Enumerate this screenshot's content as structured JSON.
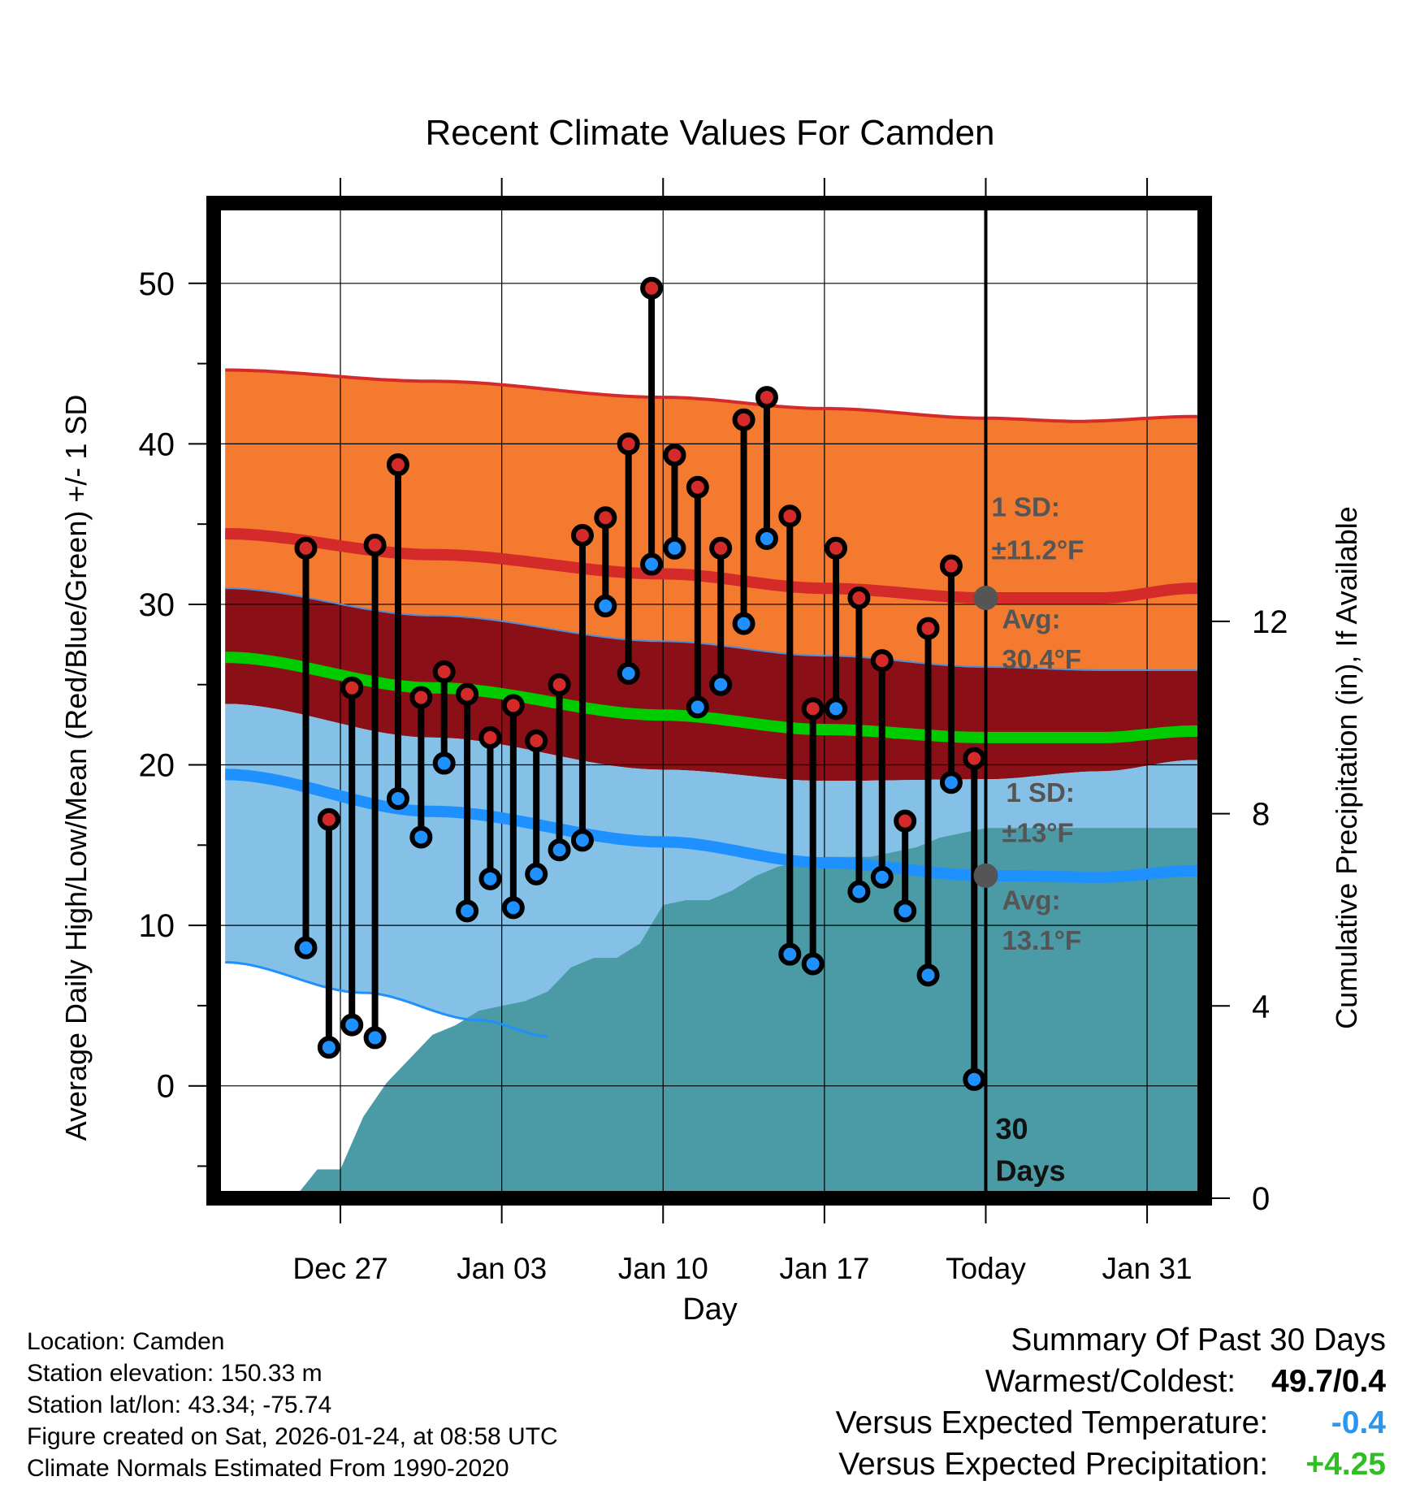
{
  "chart_data": {
    "type": "line",
    "title": "Recent Climate Values For Camden",
    "xlabel": "Day",
    "ylabel_left": "Average Daily High/Low/Mean (Red/Blue/Green) +/- 1 SD",
    "ylabel_right": "Cumulative Precipitation (in), If Available",
    "ylim_left": [
      -7,
      55
    ],
    "ylim_right": [
      0,
      20.7
    ],
    "xlim_days": [
      -33.5,
      9.5
    ],
    "x_ticks": [
      {
        "day": -28,
        "label": "Dec 27"
      },
      {
        "day": -21,
        "label": "Jan 03"
      },
      {
        "day": -14,
        "label": "Jan 10"
      },
      {
        "day": -7,
        "label": "Jan 17"
      },
      {
        "day": 0,
        "label": "Today"
      },
      {
        "day": 7,
        "label": "Jan 31"
      }
    ],
    "y_ticks_left": [
      0,
      10,
      20,
      30,
      40,
      50
    ],
    "y_minor_ticks_left": [
      -5,
      5,
      15,
      25,
      35,
      45
    ],
    "y_ticks_right": [
      0,
      4,
      8,
      12
    ],
    "grid": true,
    "series": [
      {
        "name": "Daily High",
        "color": "#d42a2a",
        "values": [
          33.5,
          16.6,
          24.8,
          33.7,
          38.7,
          24.2,
          25.8,
          24.4,
          21.7,
          23.7,
          21.5,
          25.0,
          34.3,
          35.4,
          40.0,
          49.7,
          39.3,
          37.3,
          33.5,
          41.5,
          42.9,
          35.5,
          23.5,
          33.5,
          30.4,
          26.5,
          16.5,
          28.5,
          32.4,
          20.4
        ]
      },
      {
        "name": "Daily Low",
        "color": "#1e90ff",
        "values": [
          8.6,
          2.4,
          3.8,
          3.0,
          17.9,
          15.5,
          20.1,
          10.9,
          12.9,
          11.1,
          13.2,
          14.7,
          15.3,
          29.9,
          25.7,
          32.5,
          33.5,
          23.6,
          25.0,
          28.8,
          34.1,
          8.2,
          7.6,
          23.5,
          12.1,
          13.0,
          10.9,
          6.9,
          18.9,
          0.4
        ]
      },
      {
        "name": "Normal High",
        "color": "#d42a2a",
        "values": [
          [
            -33,
            34.4
          ],
          [
            -24,
            33.1
          ],
          [
            -14,
            31.9
          ],
          [
            -7,
            31.0
          ],
          [
            0,
            30.4
          ],
          [
            5,
            30.4
          ],
          [
            9,
            31.0
          ]
        ]
      },
      {
        "name": "Normal Mean",
        "color": "#00cc00",
        "values": [
          [
            -33,
            26.7
          ],
          [
            -24,
            24.8
          ],
          [
            -14,
            23.1
          ],
          [
            -7,
            22.2
          ],
          [
            0,
            21.7
          ],
          [
            5,
            21.7
          ],
          [
            9,
            22.1
          ]
        ]
      },
      {
        "name": "Normal Low",
        "color": "#1e90ff",
        "values": [
          [
            -33,
            19.4
          ],
          [
            -24,
            17.1
          ],
          [
            -14,
            15.2
          ],
          [
            -7,
            13.9
          ],
          [
            0,
            13.1
          ],
          [
            5,
            13.0
          ],
          [
            9,
            13.4
          ]
        ]
      },
      {
        "name": "High +1 SD",
        "color": "#d42a2a",
        "values": [
          [
            -33,
            44.6
          ],
          [
            -24,
            43.9
          ],
          [
            -14,
            42.9
          ],
          [
            -7,
            42.2
          ],
          [
            0,
            41.6
          ],
          [
            4,
            41.4
          ],
          [
            9,
            41.7
          ]
        ]
      },
      {
        "name": "Low -1 SD",
        "color": "#1e90ff",
        "values": [
          [
            -33,
            7.7
          ],
          [
            -27,
            5.8
          ],
          [
            -22,
            4.1
          ],
          [
            -19,
            3.1
          ]
        ]
      },
      {
        "name": "High -1 SD / Low +1 SD boundary",
        "color": "#4c8fd6",
        "values": [
          [
            -33,
            31.0
          ],
          [
            -24,
            29.3
          ],
          [
            -14,
            27.7
          ],
          [
            -7,
            26.8
          ],
          [
            0,
            26.1
          ],
          [
            5,
            25.9
          ],
          [
            9,
            25.9
          ]
        ]
      },
      {
        "name": "Mean band lower",
        "values": [
          [
            -33,
            23.8
          ],
          [
            -24,
            21.7
          ],
          [
            -14,
            19.7
          ],
          [
            -7,
            19.0
          ],
          [
            0,
            19.1
          ],
          [
            5,
            19.6
          ],
          [
            9,
            20.3
          ]
        ]
      }
    ],
    "precip_cumulative": [
      0,
      0.6,
      0.6,
      1.7,
      2.4,
      2.9,
      3.4,
      3.6,
      3.9,
      4.0,
      4.1,
      4.3,
      4.8,
      5.0,
      5.0,
      5.3,
      6.1,
      6.2,
      6.2,
      6.4,
      6.7,
      6.9,
      7.0,
      7.1,
      7.1,
      7.1,
      7.2,
      7.3,
      7.5,
      7.6,
      7.7
    ],
    "precip_cumulative_flat": 7.7,
    "annotations": {
      "high_sd_label": "1 SD:",
      "high_sd_value": "±11.2°F",
      "high_avg_label": "Avg:",
      "high_avg_value": "30.4°F",
      "low_sd_label": "1 SD:",
      "low_sd_value": "±13°F",
      "low_avg_label": "Avg:",
      "low_avg_value": "13.1°F",
      "days_value": "30",
      "days_label": "Days"
    },
    "colors": {
      "high_band": "#f47a30",
      "overlap_band": "#8b0f16",
      "low_band": "#85c1e6",
      "precip": "#4a9ba5",
      "annotation_text": "#555555",
      "marker_dot": "#555555"
    }
  },
  "info": {
    "location": "Location: Camden",
    "elevation": "Station elevation: 150.33 m",
    "latlon": "Station lat/lon: 43.34; -75.74",
    "created": "Figure created on Sat, 2026-01-24, at 08:58 UTC",
    "normals": "Climate Normals Estimated From 1990-2020"
  },
  "summary": {
    "title": "Summary Of Past 30 Days",
    "warm_cold_label": "Warmest/Coldest:",
    "warm_cold_value": "49.7/0.4",
    "temp_label": "Versus Expected Temperature:",
    "temp_value": "-0.4",
    "temp_color": "#2b95f2",
    "precip_label": "Versus Expected Precipitation:",
    "precip_value": "+4.25",
    "precip_color": "#2fbf23"
  }
}
